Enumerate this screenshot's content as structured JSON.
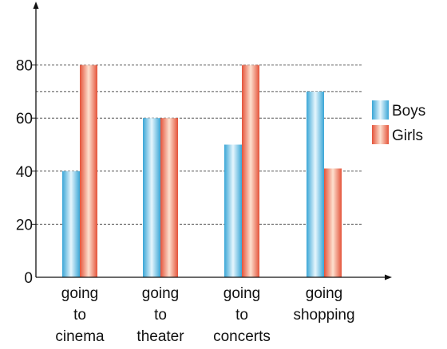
{
  "chart_data": {
    "type": "bar",
    "categories": [
      [
        "going",
        "to",
        "cinema"
      ],
      [
        "going",
        "to",
        "theater"
      ],
      [
        "going",
        "to",
        "concerts"
      ],
      [
        "going",
        "shopping"
      ]
    ],
    "series": [
      {
        "name": "Boys",
        "values": [
          40,
          60,
          50,
          70
        ]
      },
      {
        "name": "Girls",
        "values": [
          80,
          60,
          80,
          41
        ]
      }
    ],
    "ylim": [
      0,
      100
    ],
    "yticks": [
      0,
      20,
      40,
      60,
      80
    ],
    "gridlines": [
      20,
      40,
      60,
      70,
      80
    ],
    "legend_position": "right",
    "colors": {
      "Boys": {
        "edge": "#3aa6d6",
        "mid": "#e6f6fd"
      },
      "Girls": {
        "edge": "#e4533a",
        "mid": "#fde0cf"
      }
    }
  }
}
